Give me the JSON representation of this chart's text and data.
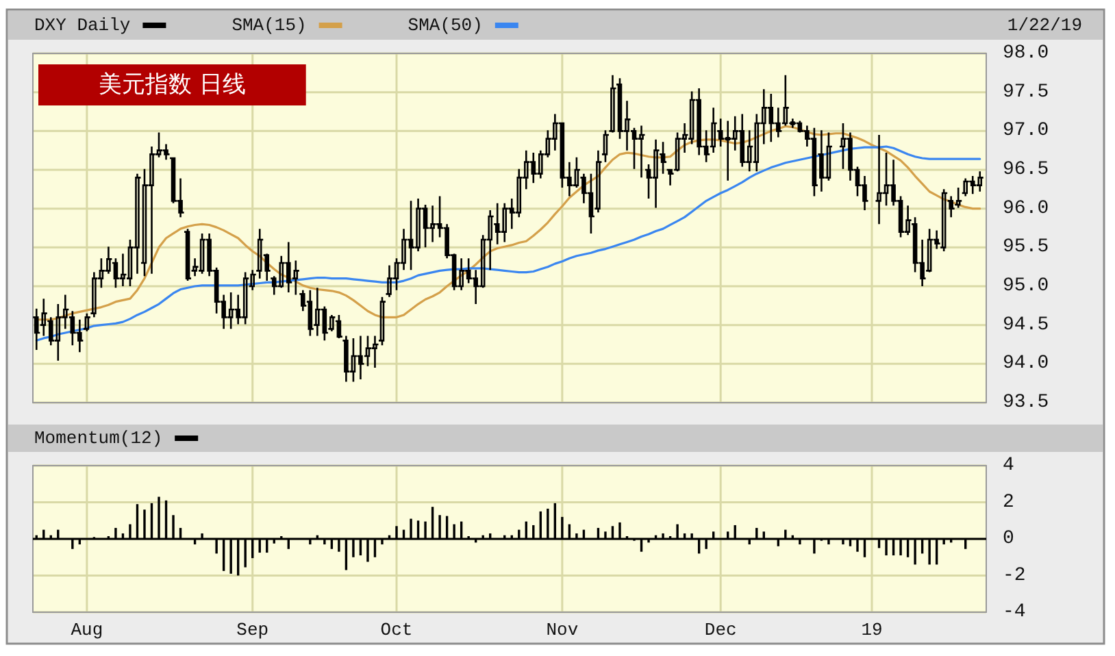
{
  "chart_data": [
    {
      "type": "candlestick",
      "title": "美元指数 日线",
      "annotations": [
        "1/22/19"
      ],
      "categories": [
        null,
        null,
        null,
        null,
        null,
        null,
        null,
        "Aug",
        null,
        null,
        null,
        null,
        null,
        null,
        null,
        null,
        null,
        null,
        null,
        null,
        null,
        null,
        null,
        null,
        null,
        null,
        null,
        null,
        null,
        null,
        "Sep",
        null,
        null,
        null,
        null,
        null,
        null,
        null,
        null,
        null,
        null,
        null,
        null,
        null,
        null,
        null,
        null,
        null,
        null,
        null,
        "Oct",
        null,
        null,
        null,
        null,
        null,
        null,
        null,
        null,
        null,
        null,
        null,
        null,
        null,
        null,
        null,
        null,
        null,
        null,
        null,
        null,
        null,
        null,
        "Nov",
        null,
        null,
        null,
        null,
        null,
        null,
        null,
        null,
        null,
        null,
        null,
        null,
        null,
        null,
        null,
        null,
        null,
        null,
        null,
        null,
        null,
        "Dec",
        null,
        null,
        null,
        null,
        null,
        null,
        null,
        null,
        null,
        null,
        null,
        null,
        null,
        null,
        null,
        null,
        null,
        null,
        null,
        null,
        "19",
        null,
        null,
        null,
        null,
        null,
        null,
        null,
        null,
        null,
        null,
        null,
        null,
        null,
        null,
        null
      ],
      "series": [
        {
          "name": "DXY Daily",
          "color": "#000000",
          "ohlc": [
            [
              94.6,
              94.71,
              94.18,
              94.4
            ],
            [
              94.5,
              94.84,
              94.36,
              94.65
            ],
            [
              94.55,
              94.6,
              94.24,
              94.3
            ],
            [
              94.3,
              94.77,
              94.04,
              94.6
            ],
            [
              94.6,
              94.89,
              94.45,
              94.7
            ],
            [
              94.6,
              94.68,
              94.24,
              94.4
            ],
            [
              94.4,
              94.57,
              94.15,
              94.3
            ],
            [
              94.45,
              94.65,
              94.42,
              94.6
            ],
            [
              94.65,
              95.18,
              94.6,
              95.1
            ],
            [
              95.1,
              95.36,
              94.98,
              95.2
            ],
            [
              95.2,
              95.51,
              95.16,
              95.35
            ],
            [
              95.3,
              95.36,
              94.98,
              95.1
            ],
            [
              95.1,
              95.42,
              95.0,
              95.15
            ],
            [
              95.1,
              95.6,
              95.0,
              95.5
            ],
            [
              95.5,
              96.45,
              95.16,
              96.4
            ],
            [
              95.3,
              96.51,
              95.13,
              96.3
            ],
            [
              96.3,
              96.8,
              95.16,
              96.7
            ],
            [
              96.7,
              96.98,
              96.66,
              96.75
            ],
            [
              96.75,
              96.83,
              96.63,
              96.7
            ],
            [
              96.65,
              96.66,
              96.07,
              96.1
            ],
            [
              96.1,
              96.39,
              95.89,
              95.95
            ],
            [
              95.7,
              95.74,
              95.07,
              95.1
            ],
            [
              95.2,
              95.36,
              95.13,
              95.25
            ],
            [
              95.2,
              95.68,
              95.16,
              95.6
            ],
            [
              95.6,
              95.68,
              95.13,
              95.2
            ],
            [
              95.2,
              95.24,
              94.65,
              94.8
            ],
            [
              94.8,
              94.89,
              94.45,
              94.6
            ],
            [
              94.6,
              94.92,
              94.45,
              94.7
            ],
            [
              94.7,
              94.89,
              94.51,
              94.6
            ],
            [
              94.6,
              95.18,
              94.51,
              95.1
            ],
            [
              95.0,
              95.21,
              94.95,
              95.15
            ],
            [
              95.2,
              95.74,
              95.1,
              95.6
            ],
            [
              95.4,
              95.42,
              95.07,
              95.2
            ],
            [
              95.1,
              95.13,
              94.89,
              95.0
            ],
            [
              95.0,
              95.39,
              94.98,
              95.3
            ],
            [
              95.3,
              95.57,
              94.92,
              95.05
            ],
            [
              95.1,
              95.33,
              94.89,
              95.2
            ],
            [
              94.9,
              94.95,
              94.68,
              94.75
            ],
            [
              94.8,
              94.95,
              94.36,
              94.45
            ],
            [
              94.5,
              94.98,
              94.36,
              94.7
            ],
            [
              94.7,
              94.74,
              94.3,
              94.4
            ],
            [
              94.45,
              94.63,
              94.42,
              94.6
            ],
            [
              94.55,
              94.63,
              94.33,
              94.35
            ],
            [
              94.3,
              94.36,
              93.77,
              93.9
            ],
            [
              93.9,
              94.33,
              93.77,
              94.1
            ],
            [
              94.1,
              94.36,
              93.8,
              94.0
            ],
            [
              94.1,
              94.36,
              93.97,
              94.2
            ],
            [
              94.2,
              94.36,
              93.95,
              94.25
            ],
            [
              94.3,
              94.86,
              94.24,
              94.8
            ],
            [
              94.9,
              95.27,
              94.86,
              95.1
            ],
            [
              95.1,
              95.36,
              94.95,
              95.3
            ],
            [
              95.3,
              95.74,
              95.21,
              95.6
            ],
            [
              95.6,
              96.1,
              95.21,
              95.5
            ],
            [
              95.5,
              96.13,
              95.45,
              96.0
            ],
            [
              96.0,
              96.05,
              95.5,
              95.75
            ],
            [
              95.75,
              96.04,
              95.57,
              95.8
            ],
            [
              95.8,
              96.16,
              95.63,
              95.75
            ],
            [
              95.75,
              95.8,
              95.36,
              95.4
            ],
            [
              95.4,
              95.42,
              94.95,
              95.0
            ],
            [
              95.0,
              95.36,
              94.95,
              95.2
            ],
            [
              95.2,
              95.36,
              95.04,
              95.1
            ],
            [
              95.1,
              95.21,
              94.77,
              95.0
            ],
            [
              95.0,
              95.66,
              94.98,
              95.6
            ],
            [
              95.6,
              95.98,
              95.21,
              95.9
            ],
            [
              95.8,
              96.07,
              95.54,
              95.7
            ],
            [
              95.7,
              96.07,
              95.57,
              96.0
            ],
            [
              96.0,
              96.13,
              95.74,
              95.95
            ],
            [
              95.95,
              96.51,
              95.89,
              96.4
            ],
            [
              96.4,
              96.75,
              96.25,
              96.6
            ],
            [
              96.6,
              96.72,
              96.33,
              96.45
            ],
            [
              96.45,
              96.75,
              96.39,
              96.7
            ],
            [
              96.7,
              97.01,
              96.66,
              96.9
            ],
            [
              96.9,
              97.22,
              96.75,
              97.1
            ],
            [
              97.1,
              97.1,
              96.27,
              96.4
            ],
            [
              96.4,
              96.6,
              96.16,
              96.3
            ],
            [
              96.3,
              96.66,
              96.27,
              96.5
            ],
            [
              96.4,
              96.45,
              96.07,
              96.2
            ],
            [
              96.2,
              96.45,
              95.68,
              95.9
            ],
            [
              96.0,
              96.75,
              95.95,
              96.6
            ],
            [
              96.7,
              97.01,
              96.6,
              96.95
            ],
            [
              97.0,
              97.72,
              96.98,
              97.55
            ],
            [
              97.6,
              97.68,
              96.9,
              97.0
            ],
            [
              97.0,
              97.39,
              96.75,
              97.15
            ],
            [
              97.0,
              97.04,
              96.51,
              96.9
            ],
            [
              96.9,
              97.07,
              96.4,
              96.95
            ],
            [
              96.5,
              96.57,
              96.13,
              96.4
            ],
            [
              96.4,
              96.89,
              96.01,
              96.75
            ],
            [
              96.7,
              96.86,
              96.45,
              96.6
            ],
            [
              96.5,
              96.51,
              96.3,
              96.45
            ],
            [
              96.5,
              96.98,
              96.48,
              96.9
            ],
            [
              96.9,
              97.1,
              96.72,
              96.95
            ],
            [
              96.9,
              97.51,
              96.83,
              97.4
            ],
            [
              97.4,
              97.55,
              96.69,
              96.8
            ],
            [
              96.8,
              97.01,
              96.6,
              96.7
            ],
            [
              96.8,
              97.3,
              96.72,
              97.1
            ],
            [
              97.0,
              97.16,
              96.8,
              96.9
            ],
            [
              96.9,
              97.13,
              96.36,
              96.9
            ],
            [
              96.9,
              97.19,
              96.75,
              97.0
            ],
            [
              97.0,
              97.22,
              96.54,
              96.6
            ],
            [
              96.6,
              97.01,
              96.48,
              96.8
            ],
            [
              96.6,
              97.22,
              96.48,
              97.1
            ],
            [
              97.1,
              97.54,
              96.83,
              97.3
            ],
            [
              97.3,
              97.48,
              96.86,
              97.1
            ],
            [
              97.1,
              97.3,
              96.92,
              97.0
            ],
            [
              97.1,
              97.72,
              97.07,
              97.3
            ],
            [
              97.1,
              97.16,
              97.04,
              97.1
            ],
            [
              97.1,
              97.13,
              96.98,
              97.0
            ],
            [
              97.0,
              97.07,
              96.8,
              96.9
            ],
            [
              96.9,
              97.04,
              96.16,
              96.3
            ],
            [
              96.7,
              97.01,
              96.22,
              96.4
            ],
            [
              96.4,
              96.98,
              96.36,
              96.8
            ],
            null,
            [
              96.8,
              97.1,
              96.51,
              96.9
            ],
            [
              96.9,
              96.98,
              96.36,
              96.5
            ],
            [
              96.5,
              96.54,
              96.16,
              96.3
            ],
            [
              96.3,
              96.42,
              95.98,
              96.1
            ],
            null,
            [
              96.1,
              96.95,
              95.8,
              96.2
            ],
            [
              96.2,
              96.72,
              96.04,
              96.3
            ],
            [
              96.3,
              96.63,
              96.04,
              96.1
            ],
            [
              96.1,
              96.16,
              95.63,
              95.7
            ],
            [
              95.7,
              96.04,
              95.66,
              95.85
            ],
            [
              95.8,
              95.89,
              95.18,
              95.3
            ],
            [
              95.3,
              95.6,
              95.0,
              95.1
            ],
            [
              95.2,
              95.74,
              95.18,
              95.6
            ],
            [
              95.6,
              95.72,
              95.48,
              95.55
            ],
            [
              95.5,
              96.25,
              95.45,
              96.2
            ],
            [
              96.1,
              96.16,
              95.89,
              96.0
            ],
            [
              96.05,
              96.27,
              96.01,
              96.1
            ],
            [
              96.2,
              96.39,
              96.16,
              96.35
            ],
            [
              96.35,
              96.42,
              96.19,
              96.3
            ],
            [
              96.3,
              96.48,
              96.22,
              96.4
            ]
          ]
        },
        {
          "name": "SMA(15)",
          "type": "line",
          "color": "#d4a04a",
          "values": [
            94.57,
            94.57,
            94.57,
            94.59,
            94.62,
            94.65,
            94.67,
            94.69,
            94.71,
            94.73,
            94.76,
            94.8,
            94.82,
            94.84,
            94.95,
            95.1,
            95.3,
            95.5,
            95.62,
            95.68,
            95.74,
            95.77,
            95.79,
            95.8,
            95.79,
            95.76,
            95.72,
            95.67,
            95.62,
            95.53,
            95.45,
            95.39,
            95.3,
            95.22,
            95.15,
            95.11,
            95.06,
            95.01,
            94.98,
            94.96,
            94.95,
            94.94,
            94.92,
            94.88,
            94.82,
            94.75,
            94.68,
            94.63,
            94.6,
            94.6,
            94.6,
            94.63,
            94.7,
            94.77,
            94.83,
            94.87,
            94.92,
            95.0,
            95.07,
            95.14,
            95.2,
            95.28,
            95.37,
            95.45,
            95.49,
            95.51,
            95.53,
            95.56,
            95.58,
            95.65,
            95.73,
            95.82,
            95.93,
            96.03,
            96.14,
            96.22,
            96.3,
            96.36,
            96.42,
            96.53,
            96.63,
            96.7,
            96.72,
            96.71,
            96.69,
            96.67,
            96.66,
            96.66,
            96.67,
            96.75,
            96.82,
            96.86,
            96.88,
            96.89,
            96.89,
            96.88,
            96.86,
            96.84,
            96.85,
            96.88,
            96.92,
            96.96,
            97.0,
            97.03,
            97.06,
            97.05,
            97.02,
            96.99,
            96.96,
            96.95,
            96.96,
            96.97,
            96.97,
            96.94,
            96.91,
            96.87,
            96.82,
            96.78,
            96.74,
            96.68,
            96.62,
            96.53,
            96.42,
            96.32,
            96.22,
            96.17,
            96.12,
            96.09,
            96.05,
            96.02,
            96.0,
            96.0
          ]
        },
        {
          "name": "SMA(50)",
          "type": "line",
          "color": "#3a86f0",
          "values": [
            94.3,
            94.33,
            94.35,
            94.38,
            94.4,
            94.42,
            94.44,
            94.46,
            94.49,
            94.5,
            94.51,
            94.52,
            94.54,
            94.58,
            94.63,
            94.67,
            94.72,
            94.77,
            94.84,
            94.91,
            94.96,
            94.98,
            95.0,
            95.01,
            95.01,
            95.01,
            95.01,
            95.01,
            95.01,
            95.02,
            95.03,
            95.04,
            95.05,
            95.05,
            95.06,
            95.07,
            95.08,
            95.09,
            95.1,
            95.11,
            95.11,
            95.1,
            95.1,
            95.1,
            95.09,
            95.08,
            95.07,
            95.06,
            95.05,
            95.05,
            95.05,
            95.07,
            95.1,
            95.14,
            95.16,
            95.18,
            95.2,
            95.21,
            95.22,
            95.22,
            95.23,
            95.23,
            95.23,
            95.22,
            95.21,
            95.2,
            95.19,
            95.18,
            95.18,
            95.19,
            95.22,
            95.25,
            95.29,
            95.32,
            95.36,
            95.39,
            95.41,
            95.43,
            95.46,
            95.48,
            95.51,
            95.54,
            95.57,
            95.6,
            95.64,
            95.67,
            95.71,
            95.74,
            95.79,
            95.84,
            95.89,
            95.96,
            96.03,
            96.1,
            96.15,
            96.2,
            96.24,
            96.29,
            96.34,
            96.4,
            96.45,
            96.49,
            96.53,
            96.56,
            96.59,
            96.61,
            96.63,
            96.65,
            96.67,
            96.69,
            96.71,
            96.73,
            96.75,
            96.77,
            96.78,
            96.79,
            96.79,
            96.79,
            96.8,
            96.78,
            96.74,
            96.7,
            96.67,
            96.65,
            96.64,
            96.64,
            96.64,
            96.64,
            96.64,
            96.64,
            96.64,
            96.64
          ]
        }
      ],
      "ylim": [
        93.5,
        98
      ],
      "yticks": [
        93.5,
        {
          "value": 94,
          "label": "94.0"
        },
        94.5,
        {
          "value": 95,
          "label": "95.0"
        },
        95.5,
        {
          "value": 96,
          "label": "96.0"
        },
        96.5,
        {
          "value": 97,
          "label": "97.0"
        },
        97.5,
        {
          "value": 98,
          "label": "98.0"
        }
      ],
      "grid": true,
      "legend": "top",
      "tick_labels": "y"
    },
    {
      "type": "bar",
      "categories": [
        null,
        null,
        null,
        null,
        null,
        null,
        null,
        "Aug",
        null,
        null,
        null,
        null,
        null,
        null,
        null,
        null,
        null,
        null,
        null,
        null,
        null,
        null,
        null,
        null,
        null,
        null,
        null,
        null,
        null,
        null,
        "Sep",
        null,
        null,
        null,
        null,
        null,
        null,
        null,
        null,
        null,
        null,
        null,
        null,
        null,
        null,
        null,
        null,
        null,
        null,
        null,
        "Oct",
        null,
        null,
        null,
        null,
        null,
        null,
        null,
        null,
        null,
        null,
        null,
        null,
        null,
        null,
        null,
        null,
        null,
        null,
        null,
        null,
        null,
        null,
        "Nov",
        null,
        null,
        null,
        null,
        null,
        null,
        null,
        null,
        null,
        null,
        null,
        null,
        null,
        null,
        null,
        null,
        null,
        null,
        null,
        null,
        null,
        "Dec",
        null,
        null,
        null,
        null,
        null,
        null,
        null,
        null,
        null,
        null,
        null,
        null,
        null,
        null,
        null,
        null,
        null,
        null,
        null,
        null,
        "19",
        null,
        null,
        null,
        null,
        null,
        null,
        null,
        null,
        null,
        null,
        null,
        null,
        null,
        null,
        null
      ],
      "series": [
        {
          "name": "Momentum(12)",
          "color": "#000000",
          "values": [
            0.2,
            0.5,
            0.2,
            0.5,
            null,
            -0.55,
            -0.3,
            null,
            0.1,
            null,
            0.15,
            0.6,
            0.3,
            0.8,
            1.9,
            1.6,
            1.95,
            2.3,
            2.1,
            1.3,
            0.6,
            null,
            -0.3,
            0.3,
            null,
            -0.8,
            -1.75,
            -1.9,
            -2.0,
            -1.55,
            -1.05,
            -0.75,
            -0.75,
            -0.25,
            0.15,
            -0.55,
            null,
            null,
            -0.3,
            0.2,
            -0.3,
            -0.55,
            -0.7,
            -1.7,
            -1.0,
            -0.9,
            -1.25,
            -1.0,
            -0.3,
            0.2,
            0.7,
            0.5,
            1.1,
            1.0,
            0.95,
            1.75,
            1.3,
            1.25,
            0.8,
            0.95,
            0.15,
            -0.2,
            0.2,
            0.3,
            null,
            0.2,
            0.2,
            0.5,
            0.95,
            0.75,
            1.5,
            1.65,
            1.95,
            1.2,
            0.8,
            0.3,
            0.5,
            null,
            0.6,
            0.4,
            0.7,
            0.9,
            0.15,
            -0.1,
            -0.7,
            -0.2,
            0.2,
            0.3,
            0.15,
            0.8,
            0.3,
            0.3,
            -0.8,
            -0.55,
            0.4,
            null,
            0.4,
            0.75,
            null,
            -0.3,
            0.6,
            0.4,
            null,
            -0.4,
            0.5,
            0.2,
            -0.3,
            null,
            -0.8,
            -0.1,
            -0.3,
            null,
            -0.3,
            -0.4,
            -0.7,
            -1.0,
            null,
            -0.5,
            -0.9,
            -0.9,
            -0.9,
            -1.0,
            -1.4,
            -0.8,
            -1.4,
            -1.4,
            -0.3,
            -0.2,
            null,
            -0.55,
            null,
            null
          ]
        }
      ],
      "ylim": [
        -4,
        4
      ],
      "yticks": [
        -4,
        -2,
        0,
        2,
        4
      ],
      "grid": true,
      "legend": "top"
    }
  ]
}
